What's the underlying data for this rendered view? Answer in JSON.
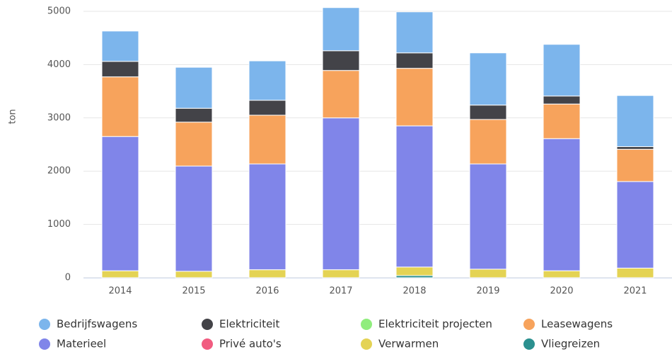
{
  "chart_data": {
    "type": "stacked_bar",
    "y_label": "ton",
    "categories": [
      "2014",
      "2015",
      "2016",
      "2017",
      "2018",
      "2019",
      "2020",
      "2021"
    ],
    "series": [
      {
        "name": "Bedrijfswagens",
        "color": "#7cb5ec",
        "values": [
          570,
          770,
          740,
          810,
          770,
          980,
          970,
          960
        ]
      },
      {
        "name": "Elektriciteit",
        "color": "#434348",
        "values": [
          290,
          260,
          280,
          370,
          290,
          270,
          150,
          50
        ]
      },
      {
        "name": "Elektriciteit projecten",
        "color": "#90ed7d",
        "values": [
          0,
          0,
          0,
          0,
          0,
          0,
          0,
          0
        ]
      },
      {
        "name": "Leasewagens",
        "color": "#f7a35c",
        "values": [
          1120,
          825,
          915,
          890,
          1080,
          835,
          650,
          605
        ]
      },
      {
        "name": "Materieel",
        "color": "#8085e9",
        "values": [
          2520,
          1975,
          1985,
          2850,
          2650,
          1975,
          2480,
          1625
        ]
      },
      {
        "name": "Privé auto's",
        "color": "#f15c80",
        "values": [
          0,
          0,
          0,
          0,
          0,
          0,
          0,
          0
        ]
      },
      {
        "name": "Verwarmen",
        "color": "#e4d354",
        "values": [
          130,
          120,
          150,
          150,
          160,
          160,
          130,
          180
        ]
      },
      {
        "name": "Vliegreizen",
        "color": "#2b908f",
        "values": [
          0,
          0,
          0,
          0,
          40,
          0,
          0,
          0
        ]
      }
    ],
    "ylim": [
      0,
      5000
    ],
    "yticks": [
      0,
      1000,
      2000,
      3000,
      4000,
      5000
    ],
    "grid": true,
    "legend": "bottom"
  }
}
